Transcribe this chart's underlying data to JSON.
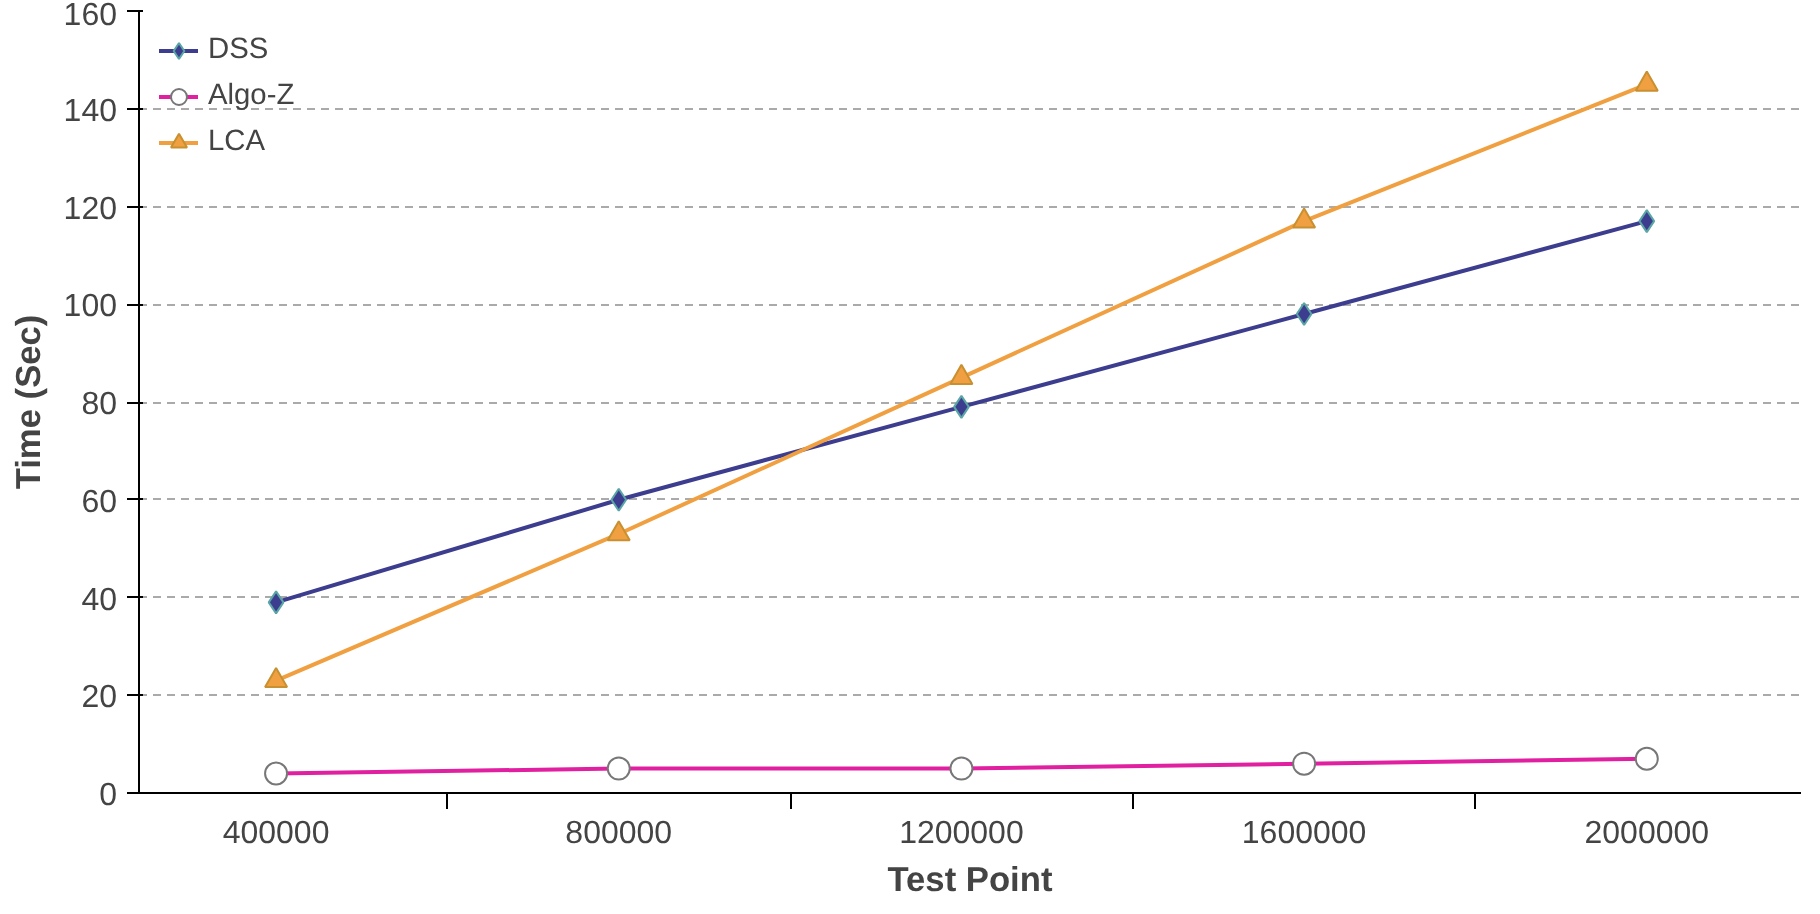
{
  "chart_data": {
    "type": "line",
    "xlabel": "Test Point",
    "ylabel": "Time (Sec)",
    "categories": [
      "400000",
      "800000",
      "1200000",
      "1600000",
      "2000000"
    ],
    "series": [
      {
        "name": "DSS",
        "color": "#3d3d8f",
        "marker": "diamond",
        "values": [
          39,
          60,
          79,
          98,
          117
        ]
      },
      {
        "name": "Algo-Z",
        "color": "#e020a0",
        "marker": "circle",
        "values": [
          4,
          5,
          5,
          6,
          7
        ]
      },
      {
        "name": "LCA",
        "color": "#f0a040",
        "marker": "triangle",
        "values": [
          23,
          53,
          85,
          117,
          145
        ]
      }
    ],
    "ylim": [
      0,
      160
    ],
    "yticks": [
      0,
      20,
      40,
      60,
      80,
      100,
      120,
      140,
      160
    ],
    "grid": "y",
    "legend": "top left",
    "line_style": "solid"
  }
}
